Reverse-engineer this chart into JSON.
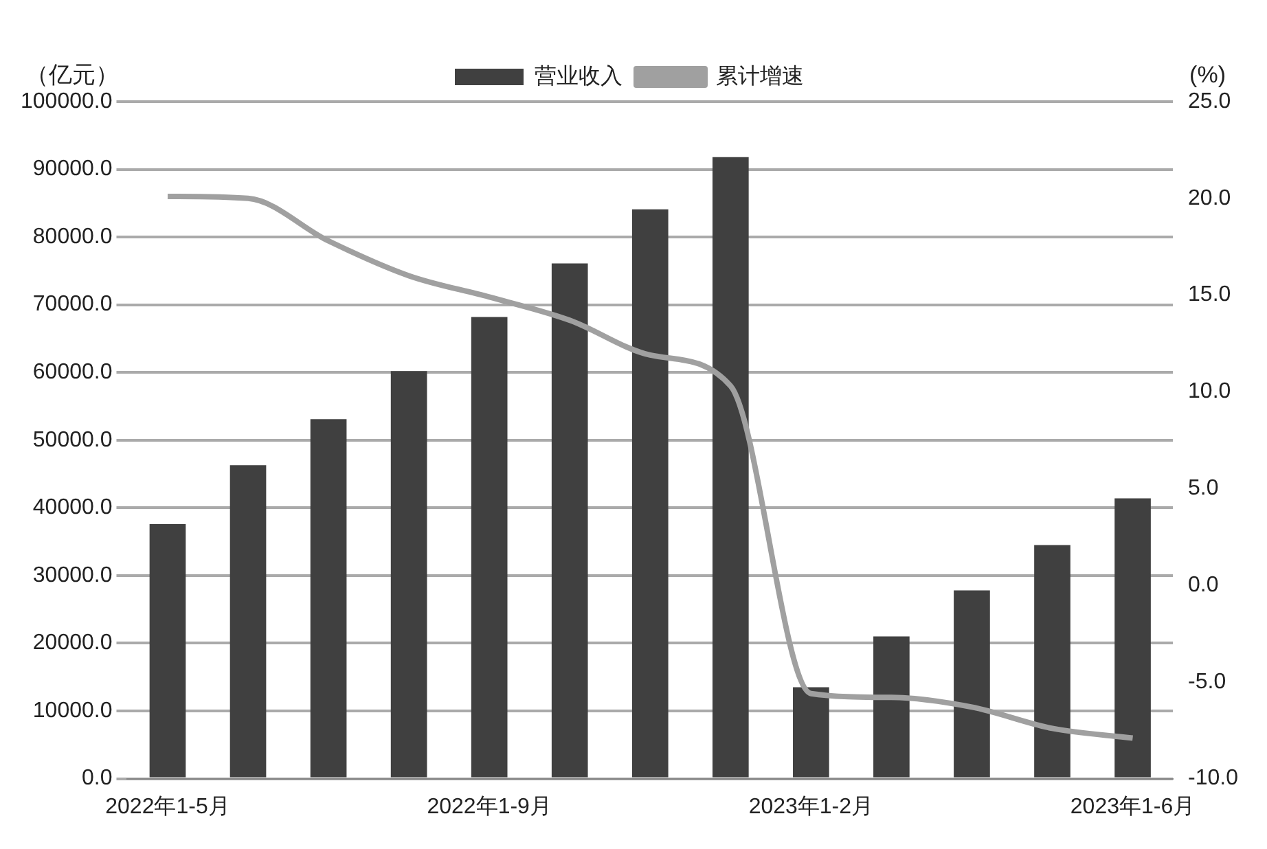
{
  "chart_data": {
    "type": "bar",
    "ylabel": "（亿元）",
    "y2label": "(%)",
    "categories": [
      "2022年1-5月",
      null,
      null,
      null,
      "2022年1-9月",
      null,
      null,
      null,
      "2023年1-2月",
      null,
      null,
      null,
      "2023年1-6月"
    ],
    "series": [
      {
        "name": "营业收入",
        "color": "#404040",
        "values": [
          37600,
          46300,
          53100,
          60200,
          68200,
          76100,
          84100,
          91800,
          13500,
          21000,
          27800,
          34500,
          41400
        ]
      },
      {
        "name": "累计增速",
        "type": "line",
        "axis": "y2",
        "color": "#a0a0a0",
        "values": [
          20.1,
          20.0,
          17.8,
          16.0,
          14.9,
          13.7,
          11.9,
          10.3,
          -5.6,
          -5.8,
          -6.3,
          -7.4,
          -7.9
        ]
      }
    ],
    "ylim": [
      0,
      100000
    ],
    "yticks": [
      {
        "value": 0,
        "label": "0.0"
      },
      {
        "value": 10000,
        "label": "10000.0"
      },
      {
        "value": 20000,
        "label": "20000.0"
      },
      {
        "value": 30000,
        "label": "30000.0"
      },
      {
        "value": 40000,
        "label": "40000.0"
      },
      {
        "value": 50000,
        "label": "50000.0"
      },
      {
        "value": 60000,
        "label": "60000.0"
      },
      {
        "value": 70000,
        "label": "70000.0"
      },
      {
        "value": 80000,
        "label": "80000.0"
      },
      {
        "value": 90000,
        "label": "90000.0"
      },
      {
        "value": 100000,
        "label": "100000.0"
      }
    ],
    "y2lim": [
      -10,
      25
    ],
    "y2ticks": [
      {
        "value": -10,
        "label": "-10.0"
      },
      {
        "value": -5,
        "label": "-5.0"
      },
      {
        "value": 0,
        "label": "0.0"
      },
      {
        "value": 5,
        "label": "5.0"
      },
      {
        "value": 10,
        "label": "10.0"
      },
      {
        "value": 15,
        "label": "15.0"
      },
      {
        "value": 20,
        "label": "20.0"
      },
      {
        "value": 25,
        "label": "25.0"
      }
    ],
    "grid": "y",
    "legend": "top",
    "marker": "none",
    "line_style": "solid"
  }
}
